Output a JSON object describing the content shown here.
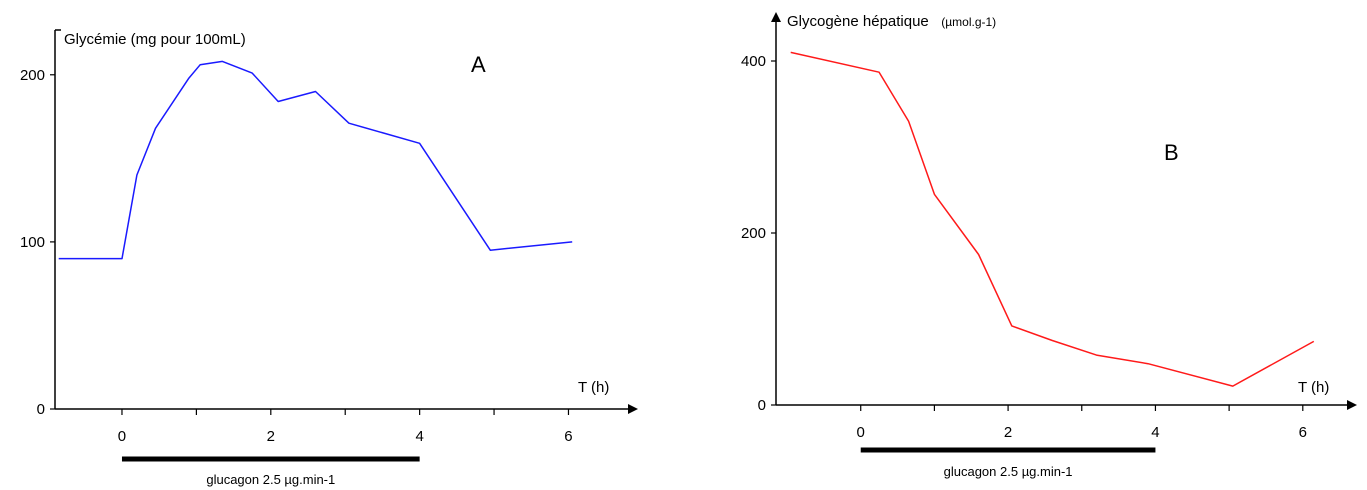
{
  "chart_data": [
    {
      "type": "line",
      "panel_label": "A",
      "ylabel": "Glycémie (mg pour 100mL)",
      "xlabel": "T (h)",
      "x_ticks": [
        0,
        2,
        4,
        6
      ],
      "y_ticks": [
        0,
        100,
        200
      ],
      "xlim": [
        -0.9,
        6.8
      ],
      "ylim": [
        0,
        225
      ],
      "series": [
        {
          "color": "#1a1aff",
          "x": [
            -0.85,
            0,
            0.2,
            0.45,
            0.9,
            1.05,
            1.35,
            1.75,
            2.1,
            2.6,
            3.05,
            4.0,
            4.95,
            6.05
          ],
          "y": [
            90,
            90,
            140,
            168,
            198,
            206,
            208,
            201,
            184,
            190,
            171,
            159,
            95,
            100
          ]
        }
      ],
      "bar": {
        "label": "glucagon 2.5 µg.min-1",
        "x_start": 0,
        "x_end": 4
      }
    },
    {
      "type": "line",
      "panel_label": "B",
      "ylabel": "Glycogène hépatique",
      "ylabel_unit": "(µmol.g-1)",
      "xlabel": "T (h)",
      "x_ticks": [
        0,
        2,
        4,
        6
      ],
      "y_ticks": [
        0,
        200,
        400
      ],
      "xlim": [
        -1.15,
        6.6
      ],
      "ylim": [
        0,
        450
      ],
      "series": [
        {
          "color": "#ff1a1a",
          "x": [
            -0.95,
            0.25,
            0.65,
            1.0,
            1.6,
            2.05,
            2.6,
            3.2,
            3.9,
            5.05,
            6.15
          ],
          "y": [
            410,
            387,
            330,
            245,
            175,
            92,
            75,
            58,
            48,
            22,
            74
          ]
        }
      ],
      "bar": {
        "label": "glucagon 2.5 µg.min-1",
        "x_start": 0,
        "x_end": 4
      }
    }
  ]
}
